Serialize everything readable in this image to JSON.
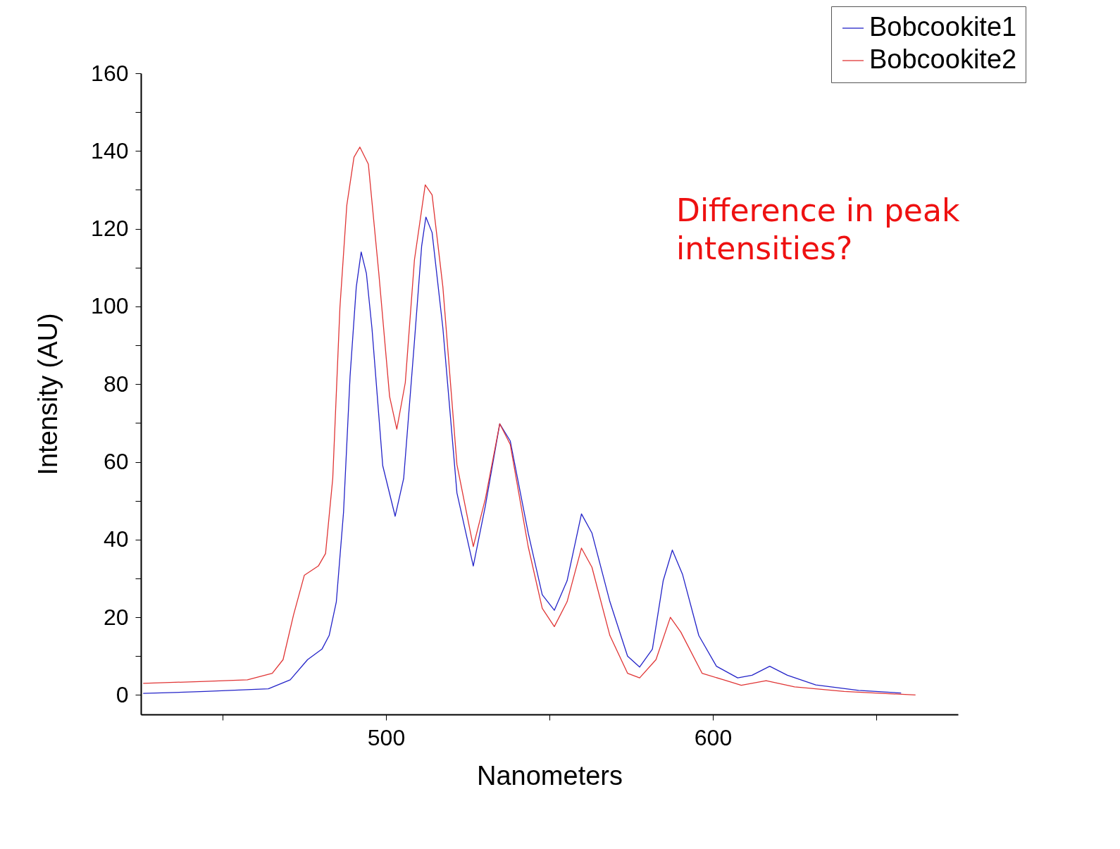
{
  "chart_data": {
    "type": "line",
    "xlabel": "Nanometers",
    "ylabel": "Intensity (AU)",
    "xlim": [
      425,
      675
    ],
    "xticks": [
      {
        "value": 450,
        "label": null
      },
      500,
      {
        "value": 550,
        "label": null
      },
      600,
      {
        "value": 650,
        "label": null
      }
    ],
    "ylim": [
      -5,
      160
    ],
    "yticks": [
      0,
      {
        "value": 10,
        "label": null
      },
      20,
      {
        "value": 30,
        "label": null
      },
      40,
      {
        "value": 50,
        "label": null
      },
      60,
      {
        "value": 70,
        "label": null
      },
      80,
      {
        "value": 90,
        "label": null
      },
      100,
      {
        "value": 110,
        "label": null
      },
      120,
      {
        "value": 130,
        "label": null
      },
      140,
      {
        "value": 150,
        "label": null
      },
      160
    ],
    "grid": false,
    "legend": "top right",
    "marker": "none",
    "line_style": "solid",
    "annotations": [
      "Difference in peak intensities?"
    ],
    "series": [
      {
        "name": "Bobcookite1",
        "color": "#2323c8",
        "x": [
          425.7,
          444.6,
          464,
          470.7,
          476,
          480.4,
          482.6,
          484.8,
          487,
          489,
          490.9,
          492.4,
          494,
          495.7,
          499,
          502.8,
          505.4,
          508.7,
          510.9,
          512.2,
          514.1,
          517.4,
          521.7,
          526.7,
          530.4,
          534.8,
          538,
          543.5,
          547.8,
          551.5,
          555.4,
          559.8,
          563,
          568.5,
          573.9,
          577.6,
          581.5,
          584.8,
          587.6,
          590.7,
          595.7,
          601.1,
          607.6,
          612,
          617.4,
          622.8,
          631.5,
          644.6,
          657.6
        ],
        "values": [
          0.4,
          0.9,
          1.6,
          3.9,
          9.1,
          11.8,
          15.3,
          24,
          47,
          82,
          105,
          114,
          108.5,
          94.4,
          59,
          46,
          55.7,
          91,
          115.5,
          123,
          119,
          94.4,
          52,
          33.2,
          48.7,
          69.8,
          65.4,
          41.7,
          25.8,
          21.8,
          29.4,
          46.6,
          41.7,
          24,
          10,
          7.2,
          11.8,
          29.4,
          37.3,
          31.1,
          15.3,
          7.4,
          4.4,
          5.1,
          7.4,
          5.1,
          2.6,
          1.2,
          0.5
        ]
      },
      {
        "name": "Bobcookite2",
        "color": "#e03535",
        "x": [
          425.7,
          444.6,
          457.6,
          465.2,
          468.5,
          471.7,
          475,
          479.3,
          481.5,
          483.7,
          485.9,
          488,
          490.2,
          492,
          494.6,
          497.8,
          501.1,
          503.3,
          505.9,
          508.7,
          512,
          514.1,
          517.4,
          521.7,
          526.7,
          530.4,
          534.8,
          538,
          543.5,
          547.8,
          551.5,
          555.4,
          559.8,
          563,
          568.5,
          573.9,
          577.6,
          582.6,
          587,
          590.2,
          596.7,
          603.3,
          608.7,
          616.3,
          625,
          640.2,
          662
        ],
        "values": [
          3,
          3.5,
          3.9,
          5.6,
          9.1,
          20.6,
          30.8,
          33.2,
          36.4,
          55.7,
          99.7,
          126,
          138.4,
          141,
          136.6,
          108.5,
          76.8,
          68.4,
          80.4,
          112,
          131.3,
          128.7,
          105,
          59.3,
          38.2,
          50.5,
          69.8,
          64.5,
          38.2,
          22.3,
          17.6,
          24,
          37.8,
          32.9,
          15.3,
          5.6,
          4.4,
          9.1,
          20,
          16.2,
          5.6,
          3.9,
          2.5,
          3.7,
          2.1,
          0.9,
          0
        ]
      }
    ]
  }
}
